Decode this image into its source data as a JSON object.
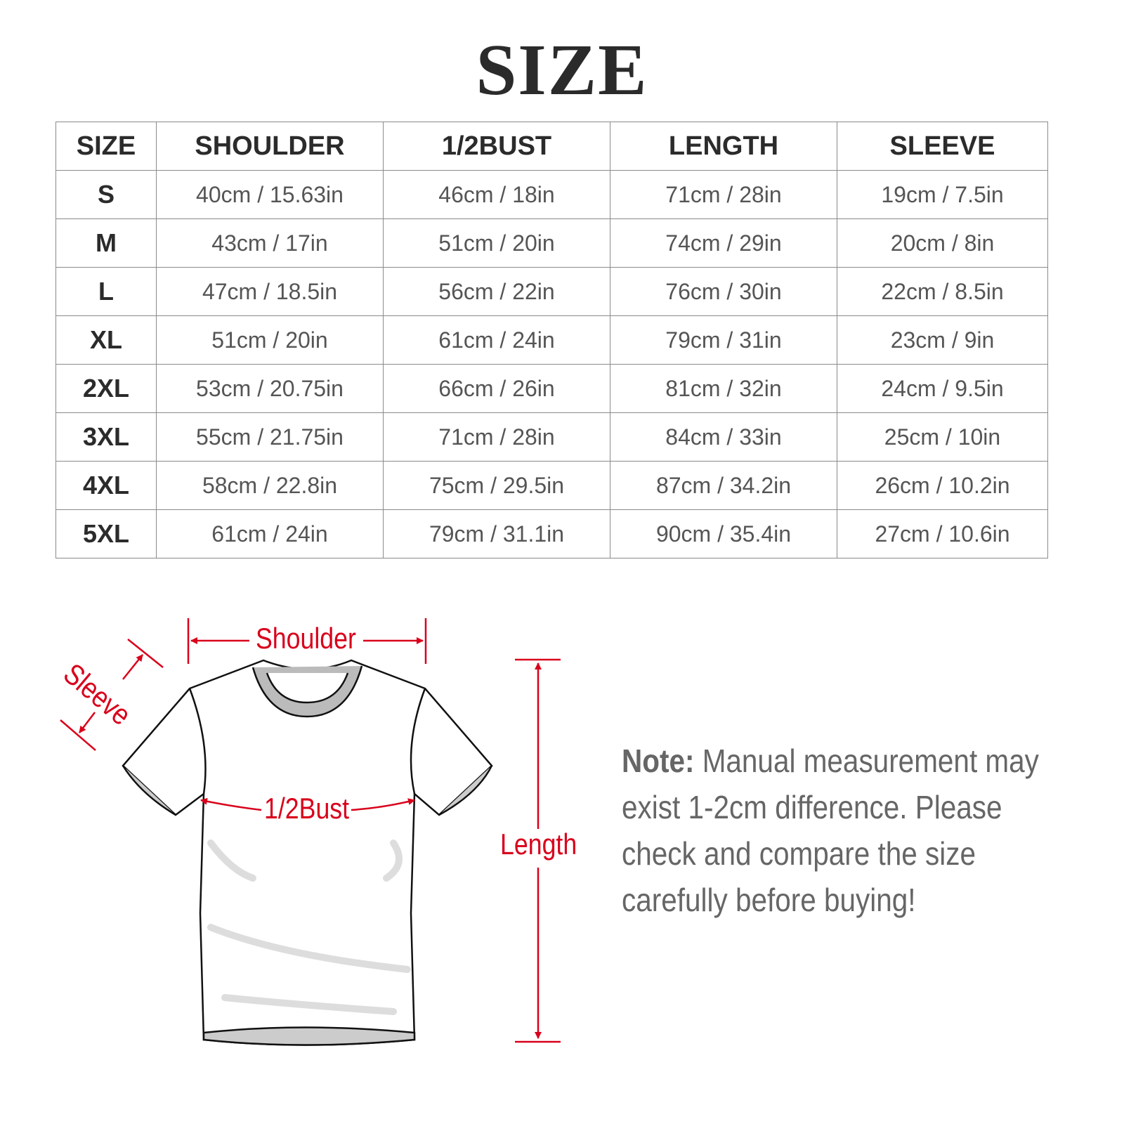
{
  "title": "SIZE",
  "table": {
    "headers": [
      "SIZE",
      "SHOULDER",
      "1/2BUST",
      "LENGTH",
      "SLEEVE"
    ],
    "rows": [
      [
        "S",
        "40cm / 15.63in",
        "46cm / 18in",
        "71cm / 28in",
        "19cm / 7.5in"
      ],
      [
        "M",
        "43cm / 17in",
        "51cm / 20in",
        "74cm / 29in",
        "20cm / 8in"
      ],
      [
        "L",
        "47cm / 18.5in",
        "56cm / 22in",
        "76cm / 30in",
        "22cm / 8.5in"
      ],
      [
        "XL",
        "51cm / 20in",
        "61cm / 24in",
        "79cm / 31in",
        "23cm / 9in"
      ],
      [
        "2XL",
        "53cm / 20.75in",
        "66cm / 26in",
        "81cm / 32in",
        "24cm / 9.5in"
      ],
      [
        "3XL",
        "55cm / 21.75in",
        "71cm / 28in",
        "84cm / 33in",
        "25cm / 10in"
      ],
      [
        "4XL",
        "58cm / 22.8in",
        "75cm / 29.5in",
        "87cm / 34.2in",
        "26cm / 10.2in"
      ],
      [
        "5XL",
        "61cm / 24in",
        "79cm / 31.1in",
        "90cm / 35.4in",
        "27cm / 10.6in"
      ]
    ]
  },
  "diagram": {
    "shoulder": "Shoulder",
    "sleeve": "Sleeve",
    "bust": "1/2Bust",
    "length": "Length",
    "accent_color": "#d9001b"
  },
  "note": {
    "label": "Note:",
    "text": "Manual measurement may exist 1-2cm difference. Please check and compare the size carefully before buying!"
  }
}
